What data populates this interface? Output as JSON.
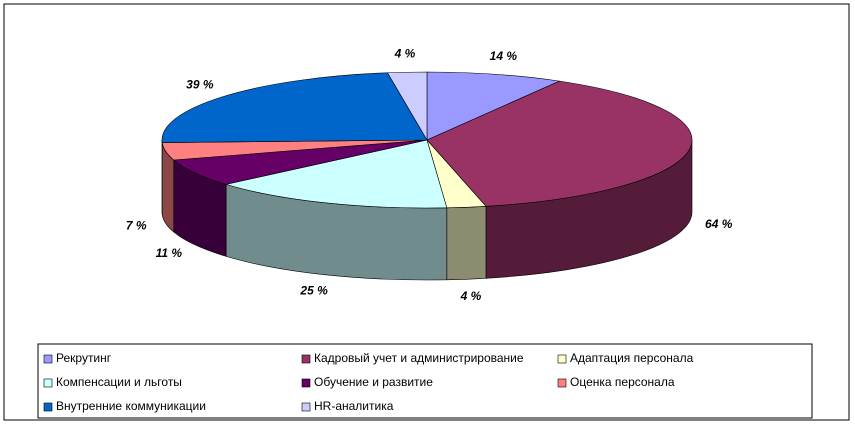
{
  "chart_data": {
    "type": "pie3d",
    "categories": [
      "Рекрутинг",
      "Кадровый учет и администрирование",
      "Адаптация персонала",
      "Компенсации и льготы",
      "Обучение и развитие",
      "Оценка персонала",
      "Внутренние коммуникации",
      "HR-аналитика"
    ],
    "values": [
      14,
      64,
      4,
      25,
      11,
      7,
      39,
      4
    ],
    "value_labels": [
      "14 %",
      "64 %",
      "4 %",
      "25 %",
      "11 %",
      "7 %",
      "39 %",
      "4 %"
    ],
    "colors": [
      "#9999ff",
      "#993366",
      "#ffffcc",
      "#ccffff",
      "#660066",
      "#ff8080",
      "#0066cc",
      "#ccccff"
    ],
    "legend": "bottom"
  }
}
